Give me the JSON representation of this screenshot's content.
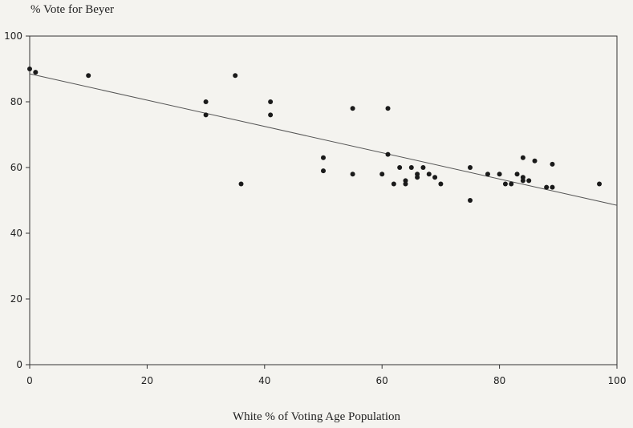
{
  "chart_data": {
    "type": "scatter",
    "xlabel": "White % of Voting Age Population",
    "ylabel": "% Vote for Beyer",
    "xlim": [
      0,
      100
    ],
    "ylim": [
      0,
      100
    ],
    "xticks": [
      "0",
      "20",
      "40",
      "60",
      "80",
      "100"
    ],
    "yticks": [
      "0",
      "20",
      "40",
      "60",
      "80",
      "100"
    ],
    "grid": false,
    "points": [
      [
        0,
        90
      ],
      [
        1,
        89
      ],
      [
        10,
        88
      ],
      [
        30,
        80
      ],
      [
        30,
        76
      ],
      [
        35,
        88
      ],
      [
        36,
        55
      ],
      [
        41,
        80
      ],
      [
        41,
        76
      ],
      [
        50,
        63
      ],
      [
        50,
        59
      ],
      [
        55,
        78
      ],
      [
        55,
        58
      ],
      [
        60,
        58
      ],
      [
        61,
        78
      ],
      [
        61,
        64
      ],
      [
        62,
        55
      ],
      [
        63,
        60
      ],
      [
        64,
        56
      ],
      [
        64,
        55
      ],
      [
        65,
        60
      ],
      [
        66,
        58
      ],
      [
        66,
        57
      ],
      [
        67,
        60
      ],
      [
        68,
        58
      ],
      [
        69,
        57
      ],
      [
        70,
        55
      ],
      [
        75,
        60
      ],
      [
        75,
        50
      ],
      [
        78,
        58
      ],
      [
        80,
        58
      ],
      [
        81,
        55
      ],
      [
        82,
        55
      ],
      [
        83,
        58
      ],
      [
        84,
        63
      ],
      [
        84,
        57
      ],
      [
        84,
        56
      ],
      [
        85,
        56
      ],
      [
        86,
        62
      ],
      [
        88,
        54
      ],
      [
        89,
        61
      ],
      [
        89,
        54
      ],
      [
        97,
        55
      ]
    ],
    "fit_line": {
      "x": [
        0,
        100
      ],
      "y": [
        88.5,
        48.5
      ]
    },
    "colors": {
      "point": "#1a1a1a",
      "line": "#555555",
      "axis": "#333333"
    }
  }
}
